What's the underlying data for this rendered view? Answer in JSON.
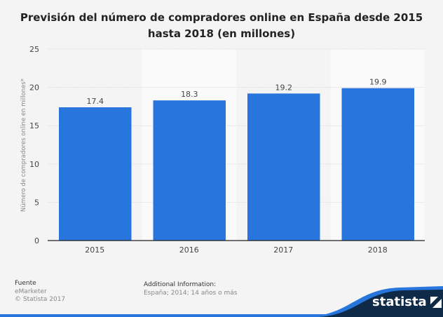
{
  "title": "Previsión del número de compradores online en España desde 2015 hasta 2018 (en millones)",
  "chart_data": {
    "type": "bar",
    "title": "Previsión del número de compradores online en España desde 2015 hasta 2018 (en millones)",
    "categories": [
      "2015",
      "2016",
      "2017",
      "2018"
    ],
    "values": [
      17.4,
      18.3,
      19.2,
      19.9
    ],
    "data_labels": [
      "17.4",
      "18.3",
      "19.2",
      "19.9"
    ],
    "xlabel": "",
    "ylabel": "Número de compradores online en millones*",
    "ylim": [
      0,
      25
    ],
    "yticks": [
      "0",
      "5",
      "10",
      "15",
      "20",
      "25"
    ],
    "grid": true,
    "bar_color": "#2876dd"
  },
  "footer": {
    "source_heading": "Fuente",
    "source": "eMarketer",
    "copyright": "© Statista 2017",
    "info_heading": "Additional Information:",
    "info": "España; 2014; 14 años o más",
    "brand": "statista"
  },
  "colors": {
    "background": "#f4f4f4",
    "brand_dark": "#0e2a47",
    "brand_blue": "#2876dd"
  }
}
